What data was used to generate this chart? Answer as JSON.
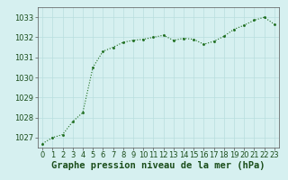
{
  "x": [
    0,
    1,
    2,
    3,
    4,
    5,
    6,
    7,
    8,
    9,
    10,
    11,
    12,
    13,
    14,
    15,
    16,
    17,
    18,
    19,
    20,
    21,
    22,
    23
  ],
  "y": [
    1026.7,
    1027.0,
    1027.15,
    1027.8,
    1028.25,
    1030.5,
    1031.3,
    1031.5,
    1031.75,
    1031.85,
    1031.9,
    1032.0,
    1032.1,
    1031.85,
    1031.95,
    1031.9,
    1031.65,
    1031.8,
    1032.05,
    1032.4,
    1032.6,
    1032.85,
    1033.0,
    1032.65
  ],
  "ylim": [
    1026.5,
    1033.5
  ],
  "yticks": [
    1027,
    1028,
    1029,
    1030,
    1031,
    1032,
    1033
  ],
  "xticks": [
    0,
    1,
    2,
    3,
    4,
    5,
    6,
    7,
    8,
    9,
    10,
    11,
    12,
    13,
    14,
    15,
    16,
    17,
    18,
    19,
    20,
    21,
    22,
    23
  ],
  "line_color": "#1a6b1a",
  "marker_color": "#1a6b1a",
  "bg_color": "#d6f0f0",
  "grid_color": "#b8dede",
  "xlabel": "Graphe pression niveau de la mer (hPa)",
  "xlabel_color": "#1a4d1a",
  "xlabel_fontsize": 7.5,
  "tick_fontsize": 6.0
}
